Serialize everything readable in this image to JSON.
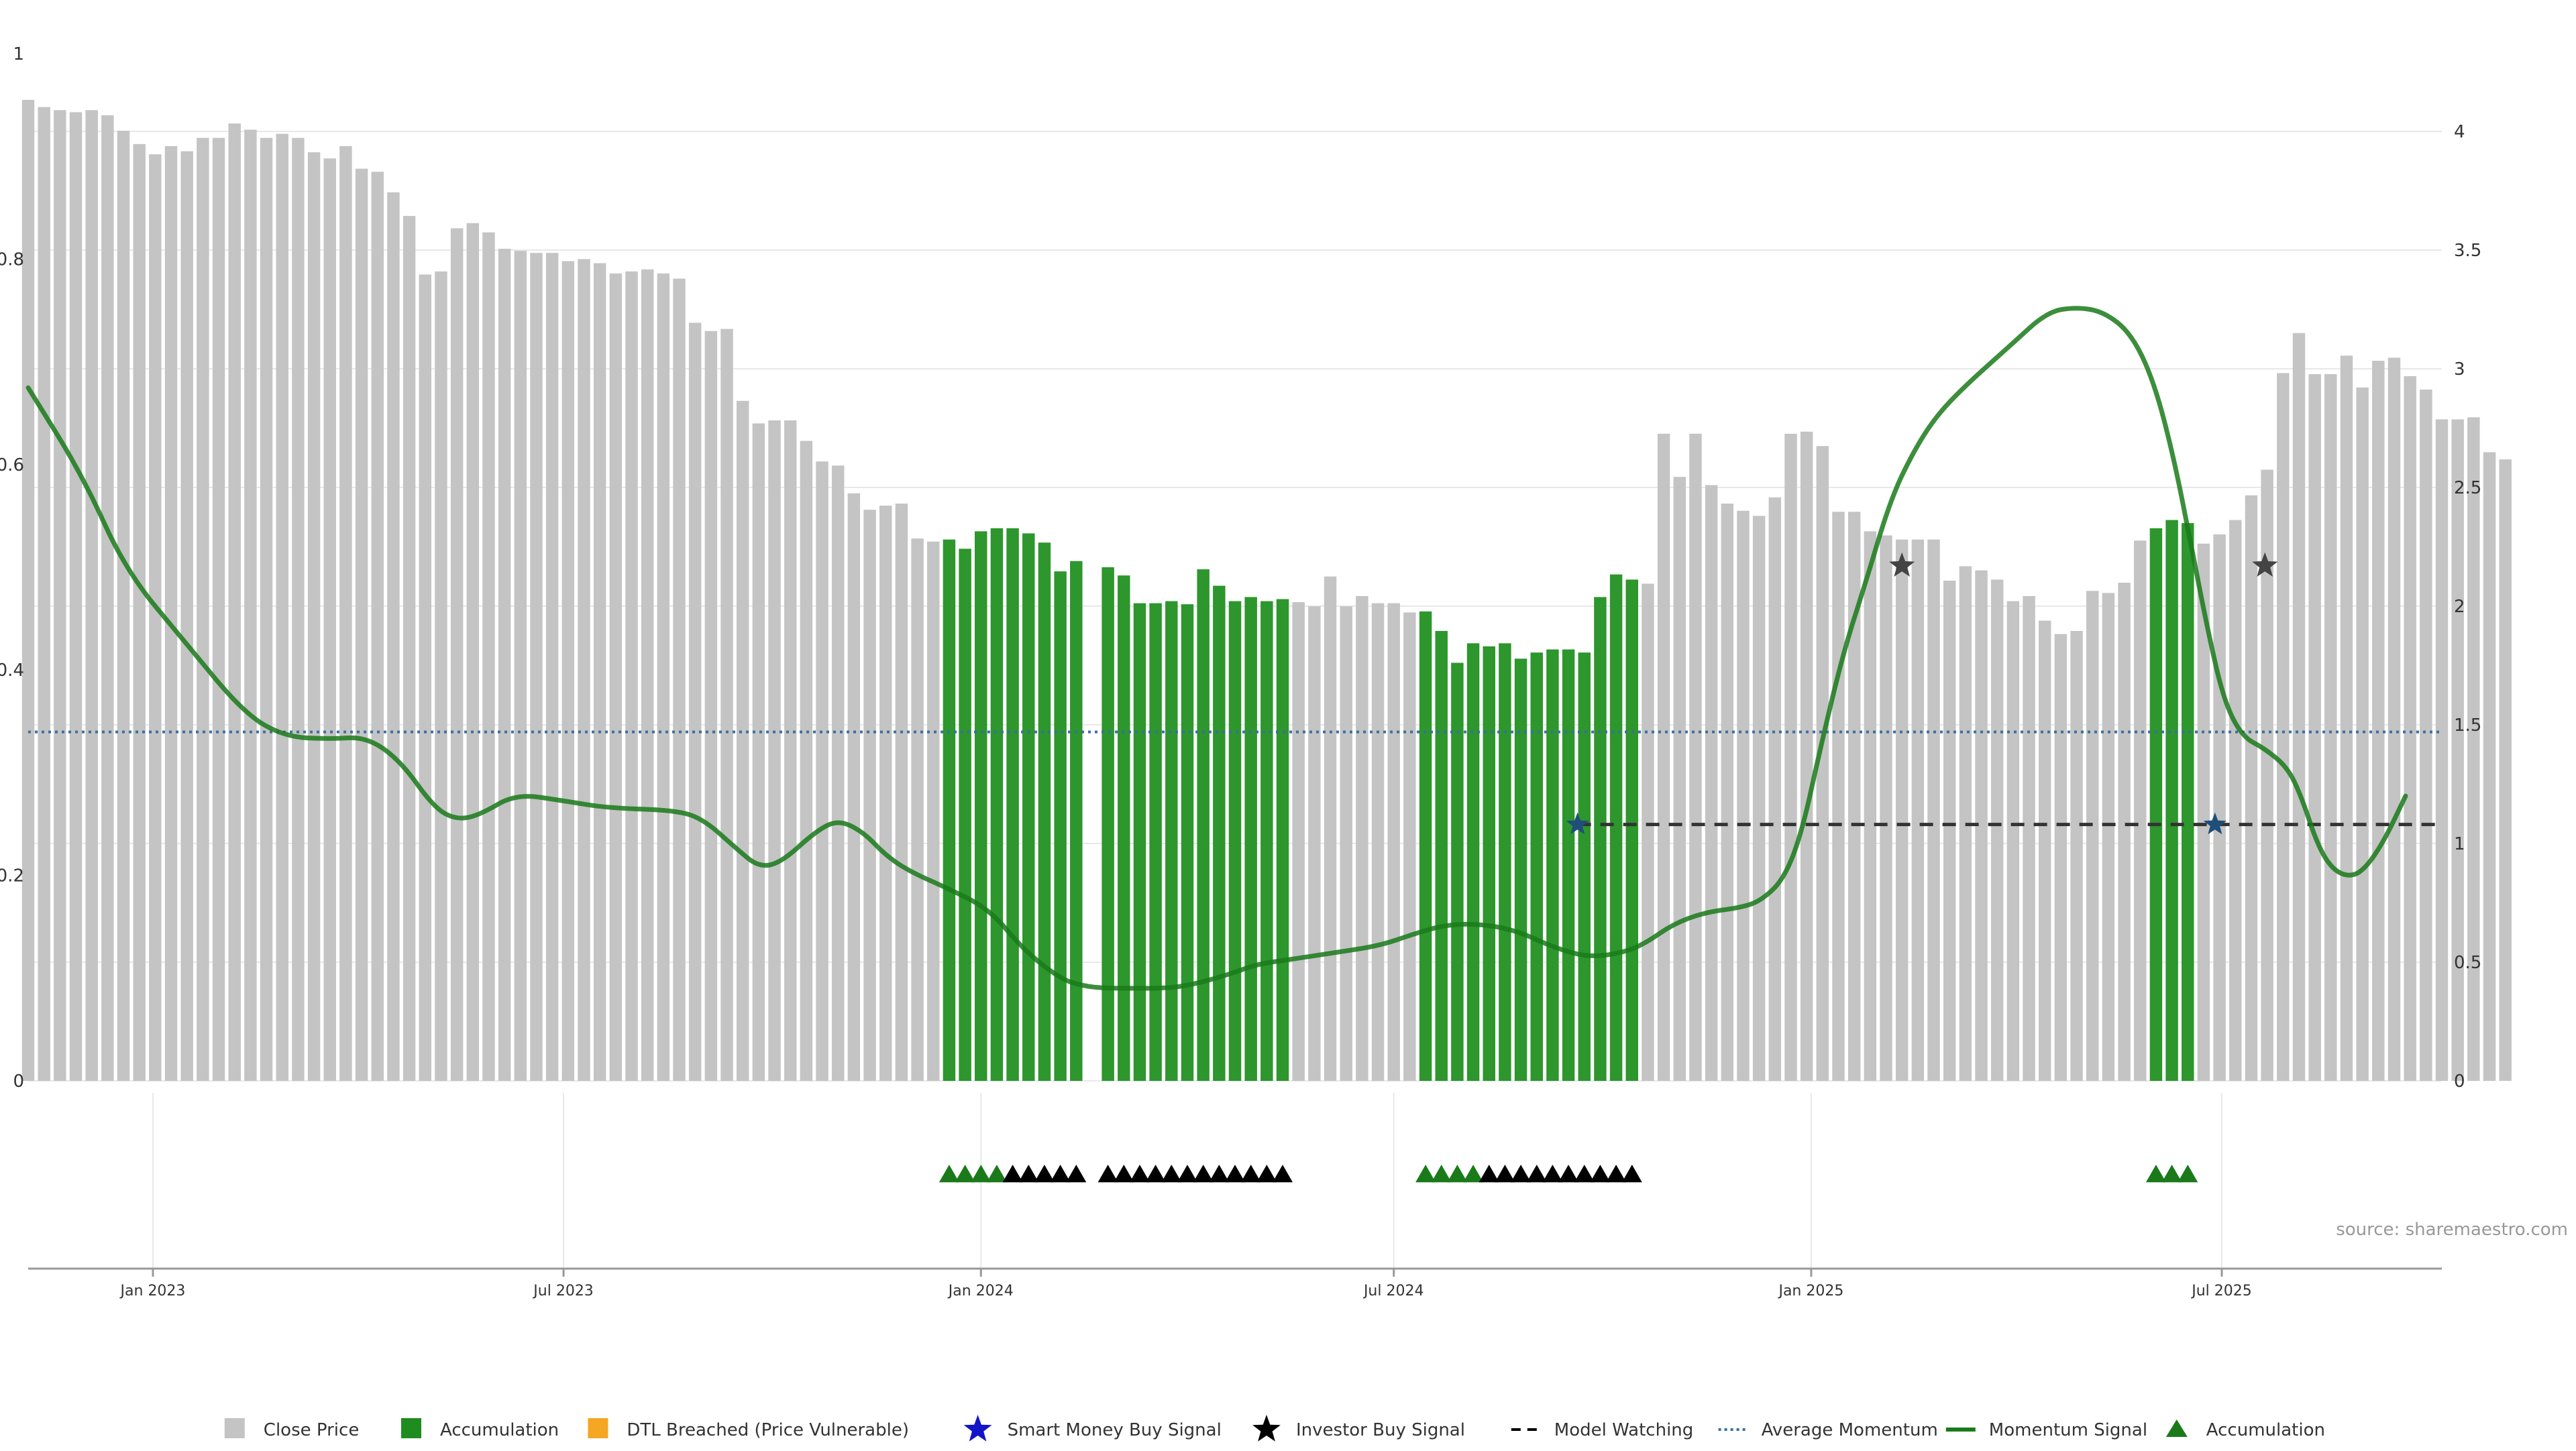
{
  "chart_data": {
    "type": "bar",
    "title": "",
    "xlabel": "",
    "ylabel": "",
    "left_axis": {
      "ylim": [
        0,
        1
      ],
      "ticks": [
        0,
        0.2,
        0.4,
        0.6,
        0.8,
        1
      ],
      "tick_labels": [
        "0",
        "0.2",
        "0.4",
        "0.6",
        "0.8",
        "1"
      ]
    },
    "right_axis": {
      "ylim": [
        0,
        4.5
      ],
      "ticks": [
        0,
        0.5,
        1,
        1.5,
        2,
        2.5,
        3,
        3.5,
        4
      ],
      "tick_labels": [
        "0",
        "0.5",
        "1",
        "1.5",
        "2",
        "2.5",
        "3",
        "3.5",
        "4"
      ]
    },
    "x_axis": {
      "range": [
        "2022-11-07",
        "2025-10-06"
      ],
      "ticks": [
        {
          "date": "2023-01-01",
          "label": "Jan 2023"
        },
        {
          "date": "2023-07-01",
          "label": "Jul 2023"
        },
        {
          "date": "2024-01-01",
          "label": "Jan 2024"
        },
        {
          "date": "2024-07-01",
          "label": "Jul 2024"
        },
        {
          "date": "2025-01-01",
          "label": "Jan 2025"
        },
        {
          "date": "2025-07-01",
          "label": "Jul 2025"
        }
      ]
    },
    "grid": true,
    "bar_interval_weeks": 1,
    "first_bar_date": "2022-11-07",
    "close_price": [
      0.955,
      0.948,
      0.945,
      0.943,
      0.945,
      0.94,
      0.925,
      0.912,
      0.902,
      0.91,
      0.905,
      0.918,
      0.918,
      0.932,
      0.926,
      0.918,
      0.922,
      0.918,
      0.904,
      0.898,
      0.91,
      0.888,
      0.885,
      0.865,
      0.842,
      0.785,
      0.788,
      0.83,
      0.835,
      0.826,
      0.81,
      0.808,
      0.806,
      0.806,
      0.798,
      0.8,
      0.796,
      0.786,
      0.788,
      0.79,
      0.786,
      0.781,
      0.738,
      0.73,
      0.732,
      0.662,
      0.64,
      0.643,
      0.643,
      0.623,
      0.603,
      0.599,
      0.572,
      0.556,
      0.56,
      0.562,
      0.528,
      0.525,
      0.527,
      0.518,
      0.535,
      0.538,
      0.538,
      0.533,
      0.524,
      0.496,
      0.506,
      0.0,
      0.5,
      0.492,
      0.465,
      0.465,
      0.467,
      0.464,
      0.498,
      0.482,
      0.467,
      0.471,
      0.467,
      0.469,
      0.466,
      0.462,
      0.491,
      0.462,
      0.472,
      0.465,
      0.465,
      0.456,
      0.457,
      0.438,
      0.407,
      0.426,
      0.423,
      0.426,
      0.411,
      0.417,
      0.42,
      0.42,
      0.417,
      0.471,
      0.493,
      0.488,
      0.484,
      0.63,
      0.588,
      0.63,
      0.58,
      0.562,
      0.555,
      0.55,
      0.568,
      0.63,
      0.632,
      0.618,
      0.554,
      0.554,
      0.535,
      0.531,
      0.527,
      0.527,
      0.527,
      0.487,
      0.501,
      0.497,
      0.488,
      0.467,
      0.472,
      0.448,
      0.435,
      0.438,
      0.477,
      0.475,
      0.485,
      0.526,
      0.538,
      0.546,
      0.543,
      0.523,
      0.532,
      0.546,
      0.57,
      0.595,
      0.689,
      0.728,
      0.688,
      0.688,
      0.706,
      0.675,
      0.701,
      0.704,
      0.686,
      0.673,
      0.644,
      0.644,
      0.646,
      0.612,
      0.605
    ],
    "accumulation_bar_ranges": [
      [
        58,
        66
      ],
      [
        68,
        79
      ],
      [
        88,
        101
      ],
      [
        134,
        136
      ]
    ],
    "average_momentum": 1.47,
    "model_watching": {
      "value": 1.08,
      "start_date": "2024-09-20",
      "end_date": "2025-10-06"
    },
    "momentum_signal": [
      [
        "2022-11-07",
        2.92
      ],
      [
        "2022-12-01",
        2.55
      ],
      [
        "2022-12-20",
        2.15
      ],
      [
        "2023-01-15",
        1.85
      ],
      [
        "2023-02-10",
        1.55
      ],
      [
        "2023-02-28",
        1.45
      ],
      [
        "2023-03-20",
        1.44
      ],
      [
        "2023-04-05",
        1.45
      ],
      [
        "2023-04-20",
        1.35
      ],
      [
        "2023-05-05",
        1.15
      ],
      [
        "2023-05-15",
        1.1
      ],
      [
        "2023-05-25",
        1.12
      ],
      [
        "2023-06-10",
        1.21
      ],
      [
        "2023-07-01",
        1.18
      ],
      [
        "2023-07-20",
        1.15
      ],
      [
        "2023-08-20",
        1.14
      ],
      [
        "2023-09-01",
        1.1
      ],
      [
        "2023-09-15",
        0.98
      ],
      [
        "2023-09-25",
        0.9
      ],
      [
        "2023-10-05",
        0.92
      ],
      [
        "2023-10-20",
        1.05
      ],
      [
        "2023-10-30",
        1.1
      ],
      [
        "2023-11-10",
        1.05
      ],
      [
        "2023-11-20",
        0.95
      ],
      [
        "2023-12-01",
        0.88
      ],
      [
        "2023-12-20",
        0.8
      ],
      [
        "2024-01-05",
        0.72
      ],
      [
        "2024-01-20",
        0.55
      ],
      [
        "2024-02-05",
        0.43
      ],
      [
        "2024-02-15",
        0.4
      ],
      [
        "2024-02-25",
        0.39
      ],
      [
        "2024-03-10",
        0.39
      ],
      [
        "2024-03-20",
        0.39
      ],
      [
        "2024-04-01",
        0.4
      ],
      [
        "2024-04-20",
        0.45
      ],
      [
        "2024-05-01",
        0.49
      ],
      [
        "2024-05-15",
        0.51
      ],
      [
        "2024-06-05",
        0.54
      ],
      [
        "2024-06-25",
        0.57
      ],
      [
        "2024-07-10",
        0.62
      ],
      [
        "2024-07-25",
        0.66
      ],
      [
        "2024-08-10",
        0.66
      ],
      [
        "2024-08-25",
        0.63
      ],
      [
        "2024-09-10",
        0.56
      ],
      [
        "2024-09-25",
        0.52
      ],
      [
        "2024-10-10",
        0.54
      ],
      [
        "2024-10-20",
        0.58
      ],
      [
        "2024-11-01",
        0.66
      ],
      [
        "2024-11-15",
        0.71
      ],
      [
        "2024-12-01",
        0.73
      ],
      [
        "2024-12-10",
        0.76
      ],
      [
        "2024-12-20",
        0.85
      ],
      [
        "2024-12-28",
        1.05
      ],
      [
        "2025-01-05",
        1.4
      ],
      [
        "2025-01-15",
        1.8
      ],
      [
        "2025-01-25",
        2.1
      ],
      [
        "2025-02-05",
        2.45
      ],
      [
        "2025-02-15",
        2.65
      ],
      [
        "2025-02-25",
        2.8
      ],
      [
        "2025-03-10",
        2.93
      ],
      [
        "2025-03-30",
        3.1
      ],
      [
        "2025-04-15",
        3.24
      ],
      [
        "2025-04-28",
        3.26
      ],
      [
        "2025-05-10",
        3.24
      ],
      [
        "2025-05-22",
        3.15
      ],
      [
        "2025-06-01",
        2.95
      ],
      [
        "2025-06-10",
        2.62
      ],
      [
        "2025-06-18",
        2.23
      ],
      [
        "2025-06-25",
        1.89
      ],
      [
        "2025-07-02",
        1.6
      ],
      [
        "2025-07-10",
        1.45
      ],
      [
        "2025-07-20",
        1.4
      ],
      [
        "2025-07-30",
        1.32
      ],
      [
        "2025-08-05",
        1.2
      ],
      [
        "2025-08-12",
        1.0
      ],
      [
        "2025-08-18",
        0.9
      ],
      [
        "2025-08-25",
        0.86
      ],
      [
        "2025-09-01",
        0.88
      ],
      [
        "2025-09-10",
        1.0
      ],
      [
        "2025-09-20",
        1.2
      ]
    ],
    "signals": {
      "investor_buy": [
        [
          "2025-02-10",
          2.17
        ],
        [
          "2025-07-20",
          2.17
        ]
      ],
      "smart_money_buy": [
        [
          "2024-09-20",
          1.08
        ],
        [
          "2025-06-28",
          1.08
        ]
      ]
    },
    "accumulation_markers": {
      "green": [
        58,
        59,
        60,
        61,
        88,
        89,
        90,
        91,
        134,
        135,
        136
      ],
      "black": [
        62,
        63,
        64,
        65,
        66,
        68,
        69,
        70,
        71,
        72,
        73,
        74,
        75,
        76,
        77,
        78,
        79,
        92,
        93,
        94,
        95,
        96,
        97,
        98,
        99,
        100,
        101
      ]
    },
    "legend": [
      {
        "label": "Close Price",
        "kind": "square",
        "color": "#c4c4c4"
      },
      {
        "label": "Accumulation",
        "kind": "square",
        "color": "#1e8c1e"
      },
      {
        "label": "DTL Breached (Price Vulnerable)",
        "kind": "square",
        "color": "#f5a623"
      },
      {
        "label": "Smart Money Buy Signal",
        "kind": "star",
        "color": "#1414c8"
      },
      {
        "label": "Investor Buy Signal",
        "kind": "star",
        "color": "#000000"
      },
      {
        "label": "Model Watching",
        "kind": "dash",
        "color": "#000000"
      },
      {
        "label": "Average Momentum",
        "kind": "dot",
        "color": "#3a6fa0"
      },
      {
        "label": "Momentum Signal",
        "kind": "line",
        "color": "#1a7a1a"
      },
      {
        "label": "Accumulation",
        "kind": "triangle",
        "color": "#1a7a1a"
      }
    ],
    "legend_position": "bottom-center",
    "source": "source: sharemaestro.com"
  },
  "colors": {
    "close_price": "#c4c4c4",
    "accumulation": "#2d962d",
    "momentum": "#1a7a1a",
    "average_momentum": "#3a6fa0",
    "model_watching": "#333333",
    "investor_star": "#444444",
    "smart_star": "#1f4e79",
    "grid": "#e8e8e8",
    "axis_text": "#333333"
  }
}
